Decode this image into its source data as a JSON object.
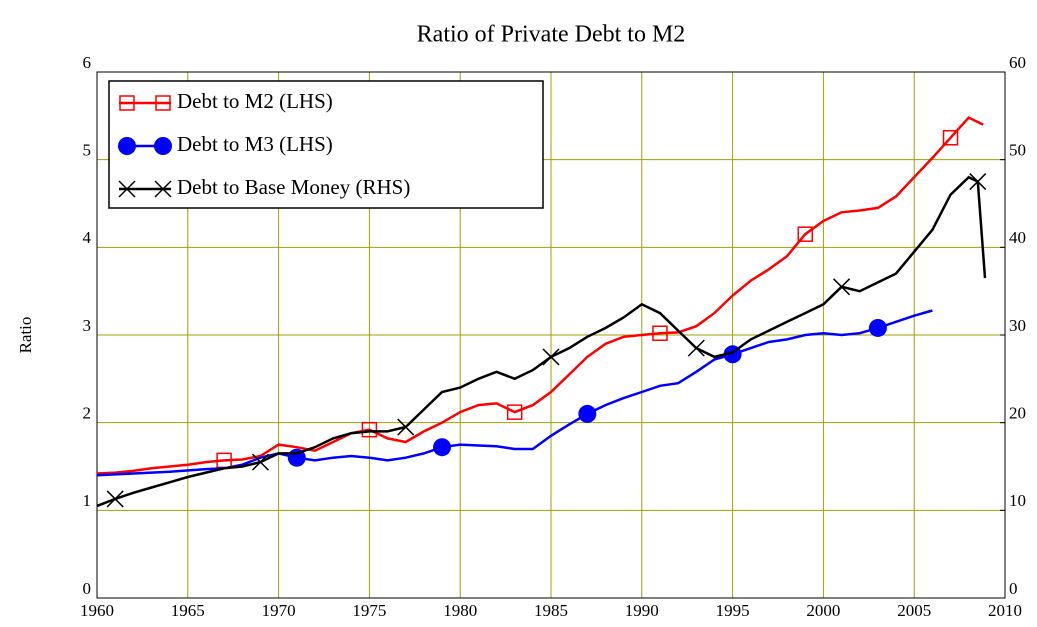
{
  "chart_data": {
    "type": "line",
    "title": "Ratio of Private Debt to M2",
    "ylabel": "Ratio",
    "xlim": [
      1960,
      2010
    ],
    "xticks": [
      1960,
      1965,
      1970,
      1975,
      1980,
      1985,
      1990,
      1995,
      2000,
      2005,
      2010
    ],
    "ylim": [
      0,
      6
    ],
    "yticks": [
      0,
      1,
      2,
      3,
      4,
      5,
      6
    ],
    "y2lim": [
      0,
      60
    ],
    "y2ticks": [
      0,
      10,
      20,
      30,
      40,
      50,
      60
    ],
    "grid": true,
    "legend": "top-left",
    "series": [
      {
        "name": "Debt to M2 (LHS)",
        "color": "#ff0000",
        "marker": "square",
        "x": [
          1960,
          1961,
          1962,
          1963,
          1964,
          1965,
          1966,
          1967,
          1968,
          1969,
          1970,
          1971,
          1972,
          1973,
          1974,
          1975,
          1976,
          1977,
          1978,
          1979,
          1980,
          1981,
          1982,
          1983,
          1984,
          1985,
          1986,
          1987,
          1988,
          1989,
          1990,
          1991,
          1992,
          1993,
          1994,
          1995,
          1996,
          1997,
          1998,
          1999,
          2000,
          2001,
          2002,
          2003,
          2004,
          2005,
          2006,
          2007,
          2008,
          2008.8
        ],
        "values": [
          1.42,
          1.43,
          1.45,
          1.48,
          1.5,
          1.52,
          1.55,
          1.57,
          1.58,
          1.62,
          1.75,
          1.72,
          1.68,
          1.78,
          1.88,
          1.92,
          1.82,
          1.78,
          1.9,
          2.0,
          2.12,
          2.2,
          2.22,
          2.12,
          2.2,
          2.35,
          2.55,
          2.75,
          2.9,
          2.98,
          3.0,
          3.02,
          3.03,
          3.1,
          3.25,
          3.45,
          3.62,
          3.75,
          3.9,
          4.15,
          4.3,
          4.4,
          4.42,
          4.45,
          4.58,
          4.8,
          5.02,
          5.25,
          5.48,
          5.4
        ]
      },
      {
        "name": "Debt to M3 (LHS)",
        "color": "#0000ff",
        "marker": "circle",
        "x": [
          1960,
          1962,
          1964,
          1966,
          1967,
          1968,
          1969,
          1970,
          1971,
          1972,
          1973,
          1974,
          1975,
          1976,
          1977,
          1978,
          1979,
          1980,
          1981,
          1982,
          1983,
          1984,
          1985,
          1986,
          1987,
          1988,
          1989,
          1990,
          1991,
          1992,
          1993,
          1994,
          1995,
          1996,
          1997,
          1998,
          1999,
          2000,
          2001,
          2002,
          2003,
          2004,
          2005,
          2006
        ],
        "values": [
          1.4,
          1.42,
          1.44,
          1.47,
          1.48,
          1.52,
          1.6,
          1.65,
          1.6,
          1.57,
          1.6,
          1.62,
          1.6,
          1.57,
          1.6,
          1.65,
          1.72,
          1.75,
          1.74,
          1.73,
          1.7,
          1.7,
          1.85,
          1.98,
          2.1,
          2.2,
          2.28,
          2.35,
          2.42,
          2.45,
          2.58,
          2.72,
          2.78,
          2.85,
          2.92,
          2.95,
          3.0,
          3.02,
          3.0,
          3.02,
          3.08,
          3.15,
          3.22,
          3.28
        ]
      },
      {
        "name": "Debt to Base Money (RHS)",
        "color": "#000000",
        "marker": "cross",
        "axis": "y2",
        "x": [
          1960,
          1961,
          1962,
          1963,
          1964,
          1965,
          1966,
          1967,
          1968,
          1969,
          1970,
          1971,
          1972,
          1973,
          1974,
          1975,
          1976,
          1977,
          1978,
          1979,
          1980,
          1981,
          1982,
          1983,
          1984,
          1985,
          1986,
          1987,
          1988,
          1989,
          1990,
          1991,
          1992,
          1993,
          1994,
          1995,
          1996,
          1997,
          1998,
          1999,
          2000,
          2001,
          2002,
          2003,
          2004,
          2005,
          2006,
          2007,
          2008,
          2008.5,
          2008.9
        ],
        "values": [
          10.5,
          11.3,
          12.0,
          12.6,
          13.2,
          13.8,
          14.3,
          14.8,
          15.0,
          15.5,
          16.5,
          16.5,
          17.2,
          18.2,
          18.8,
          19.0,
          19.0,
          19.5,
          21.5,
          23.5,
          24.0,
          25.0,
          25.8,
          25.0,
          26.0,
          27.5,
          28.5,
          29.8,
          30.8,
          32.0,
          33.5,
          32.5,
          30.5,
          28.5,
          27.5,
          28.0,
          29.5,
          30.5,
          31.5,
          32.5,
          33.5,
          35.5,
          35.0,
          36.0,
          37.0,
          39.5,
          42.0,
          46.0,
          48.0,
          47.5,
          36.5
        ]
      }
    ]
  }
}
